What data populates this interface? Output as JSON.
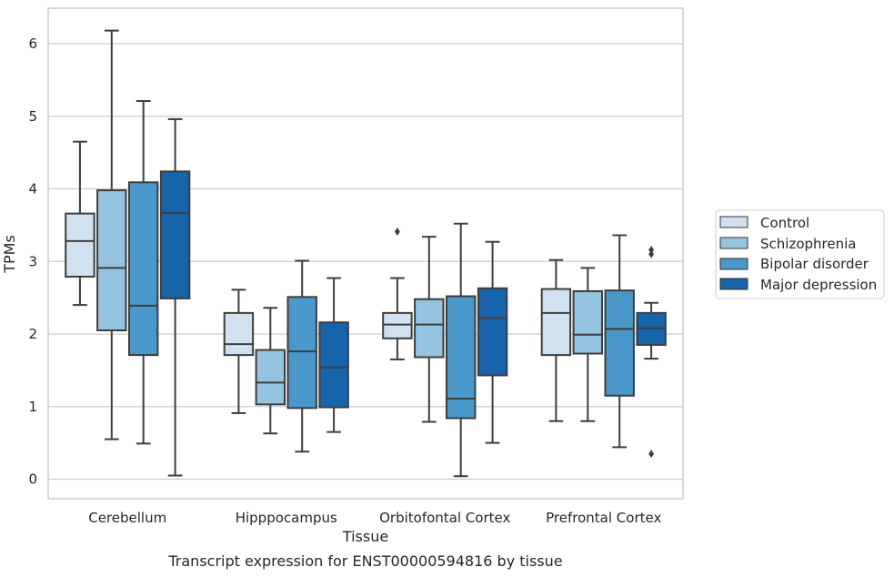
{
  "chart_data": {
    "type": "box",
    "title": "",
    "caption": "Transcript expression for ENST00000594816 by tissue",
    "xlabel": "Tissue",
    "ylabel": "TPMs",
    "ylim": [
      -0.27,
      6.5
    ],
    "yticks": [
      0,
      1,
      2,
      3,
      4,
      5,
      6
    ],
    "grid": "horizontal",
    "legend_position": "right",
    "categories": [
      "Cerebellum",
      "Hipppocampus",
      "Orbitofontal Cortex",
      "Prefrontal Cortex"
    ],
    "series": [
      {
        "name": "Control",
        "color": "#d0e1f2",
        "boxes": [
          {
            "whisker_low": 2.4,
            "q1": 2.79,
            "median": 3.28,
            "q3": 3.66,
            "whisker_high": 4.65,
            "outliers": []
          },
          {
            "whisker_low": 0.91,
            "q1": 1.71,
            "median": 1.86,
            "q3": 2.29,
            "whisker_high": 2.61,
            "outliers": []
          },
          {
            "whisker_low": 1.65,
            "q1": 1.94,
            "median": 2.13,
            "q3": 2.29,
            "whisker_high": 2.77,
            "outliers": [
              3.41
            ]
          },
          {
            "whisker_low": 0.8,
            "q1": 1.71,
            "median": 2.29,
            "q3": 2.62,
            "whisker_high": 3.02,
            "outliers": []
          }
        ]
      },
      {
        "name": "Schizophrenia",
        "color": "#94c4df",
        "boxes": [
          {
            "whisker_low": 0.55,
            "q1": 2.05,
            "median": 2.91,
            "q3": 3.98,
            "whisker_high": 6.18,
            "outliers": []
          },
          {
            "whisker_low": 0.63,
            "q1": 1.03,
            "median": 1.33,
            "q3": 1.78,
            "whisker_high": 2.36,
            "outliers": []
          },
          {
            "whisker_low": 0.79,
            "q1": 1.68,
            "median": 2.13,
            "q3": 2.48,
            "whisker_high": 3.34,
            "outliers": []
          },
          {
            "whisker_low": 0.8,
            "q1": 1.73,
            "median": 1.99,
            "q3": 2.59,
            "whisker_high": 2.91,
            "outliers": []
          }
        ]
      },
      {
        "name": "Bipolar disorder",
        "color": "#4a98c9",
        "boxes": [
          {
            "whisker_low": 0.49,
            "q1": 1.71,
            "median": 2.39,
            "q3": 4.09,
            "whisker_high": 5.21,
            "outliers": []
          },
          {
            "whisker_low": 0.38,
            "q1": 0.98,
            "median": 1.76,
            "q3": 2.51,
            "whisker_high": 3.01,
            "outliers": []
          },
          {
            "whisker_low": 0.04,
            "q1": 0.84,
            "median": 1.11,
            "q3": 2.52,
            "whisker_high": 3.52,
            "outliers": []
          },
          {
            "whisker_low": 0.44,
            "q1": 1.15,
            "median": 2.07,
            "q3": 2.6,
            "whisker_high": 3.36,
            "outliers": []
          }
        ]
      },
      {
        "name": "Major depression",
        "color": "#1764ab",
        "boxes": [
          {
            "whisker_low": 0.05,
            "q1": 2.49,
            "median": 3.67,
            "q3": 4.24,
            "whisker_high": 4.96,
            "outliers": []
          },
          {
            "whisker_low": 0.65,
            "q1": 0.99,
            "median": 1.54,
            "q3": 2.16,
            "whisker_high": 2.77,
            "outliers": []
          },
          {
            "whisker_low": 0.5,
            "q1": 1.43,
            "median": 2.22,
            "q3": 2.63,
            "whisker_high": 3.27,
            "outliers": []
          },
          {
            "whisker_low": 1.66,
            "q1": 1.85,
            "median": 2.08,
            "q3": 2.29,
            "whisker_high": 2.43,
            "outliers": [
              3.1,
              3.16,
              0.35
            ]
          }
        ]
      }
    ]
  }
}
